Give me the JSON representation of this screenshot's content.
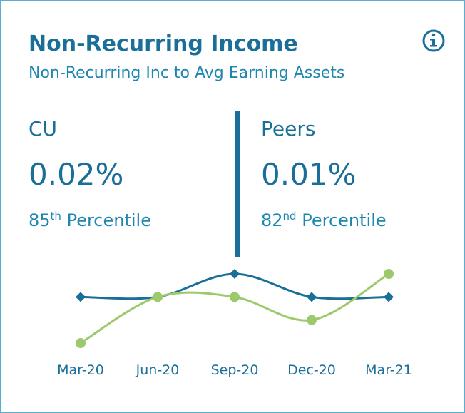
{
  "header": {
    "title": "Non-Recurring Income",
    "subtitle": "Non-Recurring Inc to Avg Earning Assets"
  },
  "cu": {
    "label": "CU",
    "value": "0.02%",
    "rank": "85",
    "rank_suffix": "th",
    "rank_text": "Percentile"
  },
  "peers": {
    "label": "Peers",
    "value": "0.01%",
    "rank": "82",
    "rank_suffix": "nd",
    "rank_text": "Percentile"
  },
  "chart_data": {
    "type": "line",
    "categories": [
      "Mar-20",
      "Jun-20",
      "Sep-20",
      "Dec-20",
      "Mar-21"
    ],
    "series": [
      {
        "name": "CU",
        "color": "#1a6f99",
        "marker": "diamond",
        "values": [
          0.02,
          0.02,
          0.03,
          0.02,
          0.02
        ]
      },
      {
        "name": "Peers",
        "color": "#9dc96d",
        "marker": "circle",
        "values": [
          0.0,
          0.02,
          0.02,
          0.01,
          0.03
        ]
      }
    ],
    "ylim": [
      0,
      0.03
    ]
  }
}
